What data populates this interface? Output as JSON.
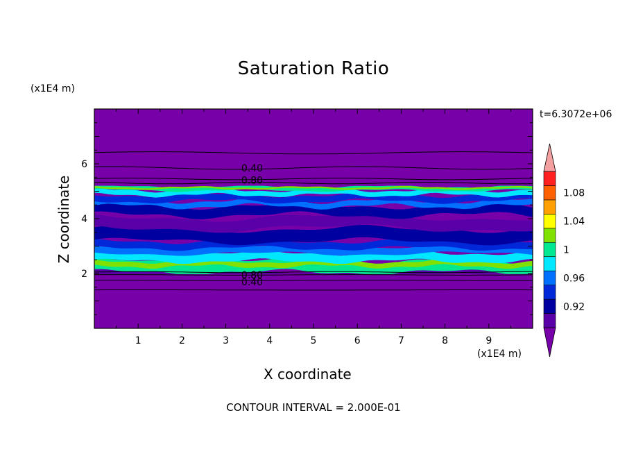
{
  "chart_data": {
    "type": "heatmap",
    "title": "Saturation Ratio",
    "xlabel": "X coordinate",
    "ylabel": "Z coordinate",
    "x_unit": "(x1E4 m)",
    "y_unit": "(x1E4 m)",
    "time_label": "t=6.3072e+06",
    "footer": "CONTOUR INTERVAL = 2.000E-01",
    "xlim": [
      0,
      10
    ],
    "ylim": [
      0,
      8
    ],
    "x_ticks": [
      "1",
      "2",
      "3",
      "4",
      "5",
      "6",
      "7",
      "8",
      "9"
    ],
    "y_ticks": [
      "2",
      "4",
      "6"
    ],
    "colorbar": {
      "labels": [
        "0.92",
        "0.96",
        "1",
        "1.04",
        "1.08"
      ],
      "levels": [
        0.9,
        0.92,
        0.94,
        0.96,
        0.98,
        1.0,
        1.02,
        1.04,
        1.06,
        1.08,
        1.1
      ],
      "colors": [
        "#5a00a8",
        "#0000a0",
        "#0028d8",
        "#0070ff",
        "#00e8ff",
        "#00e890",
        "#80e000",
        "#ffff00",
        "#ffa000",
        "#ff6000",
        "#ff2020"
      ],
      "below_color": "#7800a8",
      "above_color": "#f4a0a0"
    },
    "contour_labels": [
      "0.40",
      "0.80",
      "0.80",
      "0.40"
    ],
    "bands": [
      {
        "z_range": [
          0,
          2.0
        ],
        "value": "<0.90"
      },
      {
        "z_range": [
          2.0,
          2.6
        ],
        "value": "0.98-1.02"
      },
      {
        "z_range": [
          2.6,
          3.2
        ],
        "value": "0.94-0.98"
      },
      {
        "z_range": [
          3.2,
          4.6
        ],
        "value": "0.90-0.94"
      },
      {
        "z_range": [
          4.6,
          5.2
        ],
        "value": "0.94-1.00"
      },
      {
        "z_range": [
          5.2,
          8.0
        ],
        "value": "<0.90"
      }
    ]
  }
}
